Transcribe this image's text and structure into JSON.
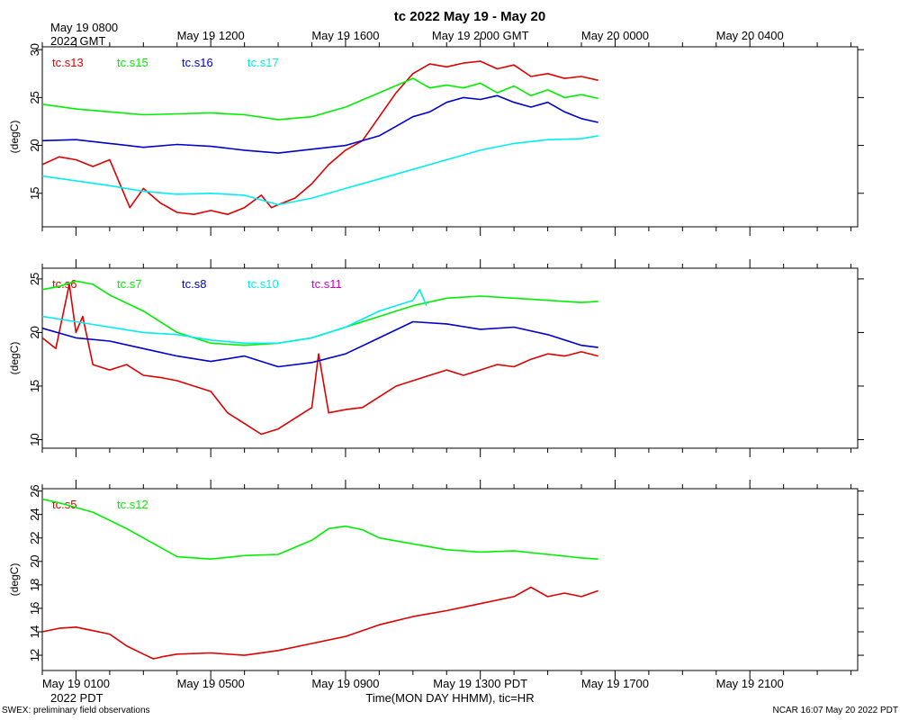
{
  "header": {
    "title": "tc 2022 May 19 - May 20",
    "gmt_first_label_line1": "May 19 0800",
    "gmt_first_label_line2": "2022 GMT",
    "pdt_year_label": "2022 PDT",
    "x_axis_label": "Time(MON DAY HHMM), tic=HR"
  },
  "footer": {
    "left": "SWEX: preliminary field observations",
    "right": "NCAR 16:07 May 20 2022 PDT"
  },
  "colors": {
    "red": "#dd0000",
    "green": "#00ee00",
    "blue": "#0000cc",
    "cyan": "#00eeee",
    "magenta": "#cc00cc",
    "frame": "#000000"
  },
  "chart_data": [
    {
      "type": "line",
      "title": "tc 2022 May 19 - May 20",
      "xlabel": "Time(MON DAY HHMM), tic=HR",
      "ylabel": "(degC)",
      "x_units": "hours after May 19 0000 PDT",
      "xlim": [
        0,
        24.2
      ],
      "ylim": [
        11.5,
        30.3
      ],
      "yticks": [
        15,
        20,
        25,
        30
      ],
      "gmt_tick_labels": [
        "May 19 1200",
        "May 19 1600",
        "May 19 2000 GMT",
        "May 20 0000",
        "May 20 0400"
      ],
      "series": [
        {
          "name": "tc.s13",
          "color": "#dd0000",
          "x": [
            0,
            0.5,
            1,
            1.5,
            2,
            2.3,
            2.6,
            3,
            3.5,
            4,
            4.5,
            5,
            5.5,
            6,
            6.5,
            6.8,
            7,
            7.5,
            8,
            8.5,
            9,
            9.5,
            10,
            10.5,
            11,
            11.5,
            12,
            12.5,
            13,
            13.5,
            14,
            14.5,
            15,
            15.5,
            16,
            16.5
          ],
          "y": [
            18.0,
            18.8,
            18.5,
            17.8,
            18.5,
            16.0,
            13.5,
            15.5,
            14.0,
            13.0,
            12.8,
            13.2,
            12.8,
            13.5,
            14.8,
            13.5,
            13.8,
            14.5,
            16.0,
            18.0,
            19.5,
            20.5,
            23.0,
            25.5,
            27.5,
            28.5,
            28.2,
            28.6,
            28.8,
            28.0,
            28.4,
            27.2,
            27.5,
            27.0,
            27.2,
            26.8
          ]
        },
        {
          "name": "tc.s15",
          "color": "#00ee00",
          "x": [
            0,
            1,
            2,
            3,
            4,
            5,
            6,
            7,
            8,
            9,
            10,
            11,
            11.5,
            12,
            12.5,
            13,
            13.5,
            14,
            14.5,
            15,
            15.5,
            16,
            16.5
          ],
          "y": [
            24.3,
            23.8,
            23.5,
            23.2,
            23.3,
            23.4,
            23.2,
            22.7,
            23.0,
            24.0,
            25.5,
            27.0,
            26.0,
            26.3,
            26.0,
            26.5,
            25.5,
            26.2,
            25.2,
            25.8,
            25.0,
            25.3,
            24.9
          ]
        },
        {
          "name": "tc.s16",
          "color": "#0000cc",
          "x": [
            0,
            1,
            2,
            3,
            4,
            5,
            6,
            7,
            8,
            9,
            10,
            11,
            11.5,
            12,
            12.5,
            13,
            13.5,
            14,
            14.5,
            15,
            15.5,
            16,
            16.5
          ],
          "y": [
            20.5,
            20.6,
            20.2,
            19.8,
            20.1,
            19.9,
            19.5,
            19.2,
            19.6,
            20.0,
            21.0,
            23.0,
            23.5,
            24.5,
            25.0,
            24.8,
            25.2,
            24.5,
            24.0,
            24.5,
            23.5,
            22.8,
            22.4
          ]
        },
        {
          "name": "tc.s17",
          "color": "#00eeee",
          "x": [
            0,
            1,
            2,
            3,
            4,
            5,
            6,
            7,
            8,
            9,
            10,
            11,
            12,
            13,
            14,
            15,
            16,
            16.5
          ],
          "y": [
            16.8,
            16.3,
            15.8,
            15.2,
            14.9,
            15.0,
            14.8,
            13.8,
            14.5,
            15.5,
            16.5,
            17.5,
            18.5,
            19.5,
            20.2,
            20.6,
            20.7,
            21.0
          ]
        }
      ]
    },
    {
      "type": "line",
      "ylabel": "(degC)",
      "x_units": "hours after May 19 0000 PDT",
      "xlim": [
        0,
        24.2
      ],
      "ylim": [
        9.2,
        26.0
      ],
      "yticks": [
        10,
        15,
        20,
        25
      ],
      "series": [
        {
          "name": "tc.s6",
          "color": "#dd0000",
          "x": [
            0,
            0.4,
            0.8,
            1.0,
            1.2,
            1.5,
            2,
            2.5,
            3,
            3.5,
            4,
            4.5,
            5,
            5.5,
            6,
            6.5,
            7,
            7.5,
            8,
            8.2,
            8.5,
            9,
            9.5,
            10,
            10.5,
            11,
            11.5,
            12,
            12.5,
            13,
            13.5,
            14,
            14.5,
            15,
            15.5,
            16,
            16.5
          ],
          "y": [
            19.5,
            18.5,
            24.5,
            20.0,
            21.5,
            17.0,
            16.5,
            17.0,
            16.0,
            15.8,
            15.5,
            15.0,
            14.5,
            12.5,
            11.5,
            10.5,
            11.0,
            12.0,
            13.0,
            18.0,
            12.5,
            12.8,
            13.0,
            14.0,
            15.0,
            15.5,
            16.0,
            16.5,
            16.0,
            16.5,
            17.0,
            16.8,
            17.5,
            18.0,
            17.8,
            18.2,
            17.8
          ]
        },
        {
          "name": "tc.s7",
          "color": "#00ee00",
          "x": [
            0,
            0.5,
            1,
            1.5,
            2,
            3,
            4,
            5,
            6,
            7,
            8,
            9,
            10,
            11,
            12,
            13,
            14,
            15,
            16,
            16.5
          ],
          "y": [
            24.0,
            24.3,
            24.8,
            24.5,
            23.5,
            22.0,
            20.0,
            19.0,
            18.8,
            19.0,
            19.5,
            20.5,
            21.5,
            22.5,
            23.2,
            23.4,
            23.2,
            23.0,
            22.8,
            22.9
          ]
        },
        {
          "name": "tc.s8",
          "color": "#0000cc",
          "x": [
            0,
            1,
            2,
            3,
            4,
            5,
            6,
            7,
            8,
            9,
            10,
            11,
            12,
            13,
            14,
            15,
            16,
            16.5
          ],
          "y": [
            20.4,
            19.5,
            19.2,
            18.5,
            17.8,
            17.3,
            17.8,
            16.8,
            17.2,
            18.0,
            19.5,
            21.0,
            20.8,
            20.3,
            20.5,
            19.8,
            18.8,
            18.6
          ]
        },
        {
          "name": "tc.s10",
          "color": "#00eeee",
          "x": [
            0,
            1,
            2,
            3,
            4,
            5,
            6,
            7,
            8,
            9,
            10,
            11,
            11.2,
            11.4
          ],
          "y": [
            21.5,
            21.0,
            20.5,
            20.0,
            19.8,
            19.3,
            19.0,
            19.0,
            19.5,
            20.5,
            22.0,
            23.0,
            24.0,
            22.5
          ]
        },
        {
          "name": "tc.s11",
          "color": "#cc00cc",
          "x": [],
          "y": []
        }
      ]
    },
    {
      "type": "line",
      "ylabel": "(degC)",
      "x_units": "hours after May 19 0000 PDT",
      "xlim": [
        0,
        24.2
      ],
      "ylim": [
        10.7,
        26.2
      ],
      "yticks": [
        12,
        14,
        16,
        18,
        20,
        22,
        24,
        26
      ],
      "pdt_tick_labels": [
        "May 19 0100",
        "May 19 0500",
        "May 19 0900",
        "May 19 1300 PDT",
        "May 19 1700",
        "May 19 2100"
      ],
      "series": [
        {
          "name": "tc.s5",
          "color": "#dd0000",
          "x": [
            0,
            0.5,
            1,
            1.5,
            2,
            2.5,
            3,
            3.3,
            3.6,
            4,
            5,
            6,
            7,
            8,
            9,
            10,
            11,
            12,
            13,
            14,
            14.5,
            15,
            15.5,
            16,
            16.5
          ],
          "y": [
            14.0,
            14.3,
            14.4,
            14.1,
            13.8,
            12.8,
            12.1,
            11.7,
            11.9,
            12.1,
            12.2,
            12.0,
            12.4,
            13.0,
            13.6,
            14.6,
            15.3,
            15.8,
            16.4,
            17.0,
            17.8,
            17.0,
            17.3,
            17.0,
            17.5
          ]
        },
        {
          "name": "tc.s12",
          "color": "#00ee00",
          "x": [
            0,
            0.5,
            1,
            1.5,
            2,
            2.5,
            3,
            4,
            5,
            6,
            7,
            8,
            8.5,
            9,
            9.5,
            10,
            11,
            12,
            13,
            14,
            15,
            16,
            16.5
          ],
          "y": [
            25.3,
            25.0,
            24.6,
            24.2,
            23.5,
            22.8,
            22.0,
            20.4,
            20.2,
            20.5,
            20.6,
            21.8,
            22.8,
            23.0,
            22.7,
            22.0,
            21.5,
            21.0,
            20.8,
            20.9,
            20.6,
            20.3,
            20.2
          ]
        }
      ]
    }
  ]
}
